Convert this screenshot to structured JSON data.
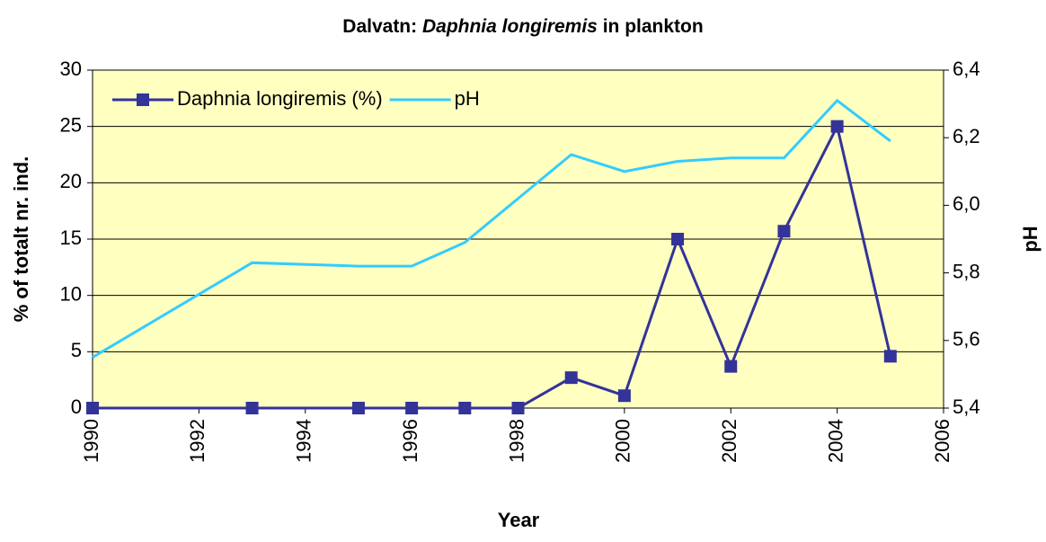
{
  "chart_data": {
    "type": "line",
    "title": [
      "Dalvatn:",
      "Daphnia longiremis",
      "in plankton"
    ],
    "x_label": "Year",
    "y_label": "% of totalt nr. ind.",
    "y2_label": "pH",
    "x": [
      1990,
      1993,
      1995,
      1996,
      1997,
      1998,
      1999,
      2000,
      2001,
      2002,
      2003,
      2004,
      2005
    ],
    "series": [
      {
        "name": "Daphnia longiremis (%)",
        "color": "#333399",
        "marker": "square",
        "values": [
          0,
          0,
          0,
          0,
          0,
          0,
          2.7,
          1.1,
          15,
          3.7,
          15.7,
          25,
          4.6
        ]
      },
      {
        "name": "pH",
        "color": "#33CCFF",
        "axis": "y2",
        "values": [
          5.55,
          5.83,
          5.82,
          5.82,
          5.89,
          6.02,
          6.15,
          6.1,
          6.13,
          6.14,
          6.14,
          6.31,
          6.19
        ]
      }
    ],
    "xlim": [
      1990,
      2006
    ],
    "xticks": [
      1990,
      1992,
      1994,
      1996,
      1998,
      2000,
      2002,
      2004,
      2006
    ],
    "ylim": [
      0,
      30
    ],
    "yticks": [
      0,
      5,
      10,
      15,
      20,
      25,
      30
    ],
    "y2lim": [
      5.4,
      6.4
    ],
    "y2ticks": [
      {
        "value": 5.4,
        "label": "5,4"
      },
      {
        "value": 5.6,
        "label": "5,6"
      },
      {
        "value": 5.8,
        "label": "5,8"
      },
      {
        "value": 6.0,
        "label": "6,0"
      },
      {
        "value": 6.2,
        "label": "6,2"
      },
      {
        "value": 6.4,
        "label": "6,4"
      }
    ],
    "grid": true,
    "plot_background": "#FFFFC0",
    "legend_position": "top-left"
  }
}
